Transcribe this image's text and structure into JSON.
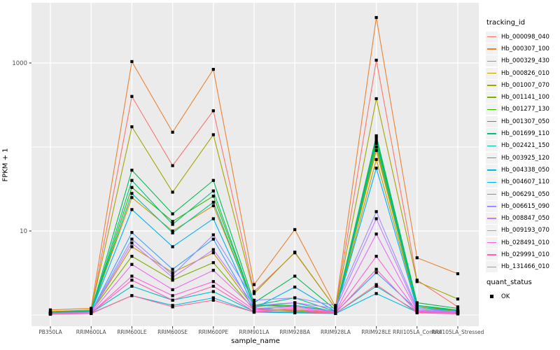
{
  "figure": {
    "background": "#FFFFFF",
    "panel_background": "#EBEBEB",
    "gridline_color": "#FFFFFF",
    "tick_color": "#333333",
    "tick_label_color": "#4D4D4D",
    "point_color": "#000000"
  },
  "legends": {
    "tracking": {
      "title": "tracking_id"
    },
    "quant": {
      "title": "quant_status",
      "items": [
        {
          "label": "OK"
        }
      ]
    }
  },
  "chart_data": {
    "type": "line",
    "x_type": "categorical",
    "y_scale": "log10",
    "title": "",
    "xlabel": "sample_name",
    "ylabel": "FPKM + 1",
    "ylim": [
      1,
      3800
    ],
    "grid": true,
    "legend_position": "right",
    "y_ticks": [
      {
        "label": "1000",
        "value": 1000
      },
      {
        "label": "10",
        "value": 10
      }
    ],
    "y_minor_values": [
      100,
      1
    ],
    "categories": [
      "PB350LA",
      "RRIM600LA",
      "RRIM600LE",
      "RRIM600SE",
      "RRIM600PE",
      "RRIM901LA",
      "RRIM928BA",
      "RRIM928LA",
      "RRIM928LE",
      "RRII105LA_Control",
      "RRII105LA_Stressed"
    ],
    "series": [
      {
        "name": "Hb_000098_040",
        "color": "#F8766D",
        "values": [
          1.1,
          1.12,
          400,
          60,
          270,
          1.9,
          5.5,
          1.2,
          1080,
          2.6,
          1.25
        ]
      },
      {
        "name": "Hb_000307_100",
        "color": "#EA8331",
        "values": [
          1.15,
          1.2,
          1040,
          150,
          840,
          2.3,
          10.4,
          1.25,
          3480,
          4.8,
          3.1
        ]
      },
      {
        "name": "Hb_000329_430",
        "color": "#D89000",
        "values": [
          1.05,
          1.1,
          25,
          10,
          20,
          1.3,
          1.25,
          1.1,
          91,
          1.3,
          1.1
        ]
      },
      {
        "name": "Hb_000826_010",
        "color": "#C09B00",
        "values": [
          1.05,
          1.08,
          6.5,
          3.2,
          5.5,
          1.2,
          1.15,
          1.08,
          71,
          1.25,
          1.1
        ]
      },
      {
        "name": "Hb_001007_070",
        "color": "#A3A500",
        "values": [
          1.1,
          1.15,
          174,
          29,
          140,
          1.8,
          5.6,
          1.2,
          376,
          2.5,
          1.55
        ]
      },
      {
        "name": "Hb_001141_100",
        "color": "#7CAE00",
        "values": [
          1.05,
          1.1,
          5.0,
          2.6,
          4.2,
          1.15,
          1.12,
          1.06,
          100,
          1.2,
          1.08
        ]
      },
      {
        "name": "Hb_001277_130",
        "color": "#39B600",
        "values": [
          1.06,
          1.1,
          33,
          13,
          26,
          1.3,
          1.3,
          1.1,
          119,
          1.3,
          1.12
        ]
      },
      {
        "name": "Hb_001307_050",
        "color": "#00BB4E",
        "values": [
          1.08,
          1.12,
          53,
          16,
          40,
          1.4,
          2.9,
          1.15,
          136,
          1.4,
          1.2
        ]
      },
      {
        "name": "Hb_001699_110",
        "color": "#00BF7D",
        "values": [
          1.06,
          1.1,
          40,
          12,
          30,
          1.3,
          1.6,
          1.1,
          128,
          1.3,
          1.15
        ]
      },
      {
        "name": "Hb_002421_150",
        "color": "#00C1A3",
        "values": [
          1.05,
          1.1,
          28,
          9.5,
          22,
          1.25,
          1.4,
          1.08,
          110,
          1.25,
          1.1
        ]
      },
      {
        "name": "Hb_003925_120",
        "color": "#00BFC4",
        "values": [
          1.03,
          1.06,
          2.2,
          1.5,
          1.9,
          1.1,
          1.08,
          1.05,
          2.2,
          1.1,
          1.05
        ]
      },
      {
        "name": "Hb_004338_050",
        "color": "#00BAE0",
        "values": [
          1.03,
          1.05,
          1.7,
          1.3,
          1.6,
          1.08,
          1.06,
          1.04,
          1.8,
          1.08,
          1.04
        ]
      },
      {
        "name": "Hb_004607_110",
        "color": "#00B0F6",
        "values": [
          1.05,
          1.1,
          18,
          6.5,
          14,
          1.2,
          2.15,
          1.1,
          56,
          1.2,
          1.1
        ]
      },
      {
        "name": "Hb_006291_050",
        "color": "#35A2FF",
        "values": [
          1.04,
          1.08,
          9.6,
          3.5,
          8.0,
          1.15,
          1.3,
          1.08,
          3.2,
          1.15,
          1.06
        ]
      },
      {
        "name": "Hb_006615_090",
        "color": "#9590FF",
        "values": [
          1.05,
          1.08,
          8.0,
          3.0,
          9.0,
          1.5,
          1.6,
          1.3,
          17,
          1.2,
          1.1
        ]
      },
      {
        "name": "Hb_008847_050",
        "color": "#C77CFF",
        "values": [
          1.04,
          1.07,
          7.2,
          2.8,
          6.0,
          1.3,
          1.4,
          1.2,
          14,
          1.15,
          1.08
        ]
      },
      {
        "name": "Hb_009193_070",
        "color": "#E76BF3",
        "values": [
          1.04,
          1.06,
          4.0,
          2.0,
          3.4,
          1.2,
          1.25,
          1.1,
          9.2,
          1.12,
          1.06
        ]
      },
      {
        "name": "Hb_028491_010",
        "color": "#FA62DB",
        "values": [
          1.03,
          1.05,
          2.9,
          1.7,
          2.5,
          1.15,
          1.2,
          1.08,
          5.0,
          1.1,
          1.05
        ]
      },
      {
        "name": "Hb_029991_010",
        "color": "#FF62BC",
        "values": [
          1.03,
          1.05,
          2.6,
          1.5,
          2.2,
          1.1,
          1.15,
          1.06,
          3.5,
          1.08,
          1.04
        ]
      },
      {
        "name": "Hb_131466_010",
        "color": "#FF6A98",
        "values": [
          1.02,
          1.04,
          1.7,
          1.25,
          1.5,
          1.08,
          1.1,
          1.05,
          2.3,
          1.06,
          1.03
        ]
      }
    ]
  }
}
